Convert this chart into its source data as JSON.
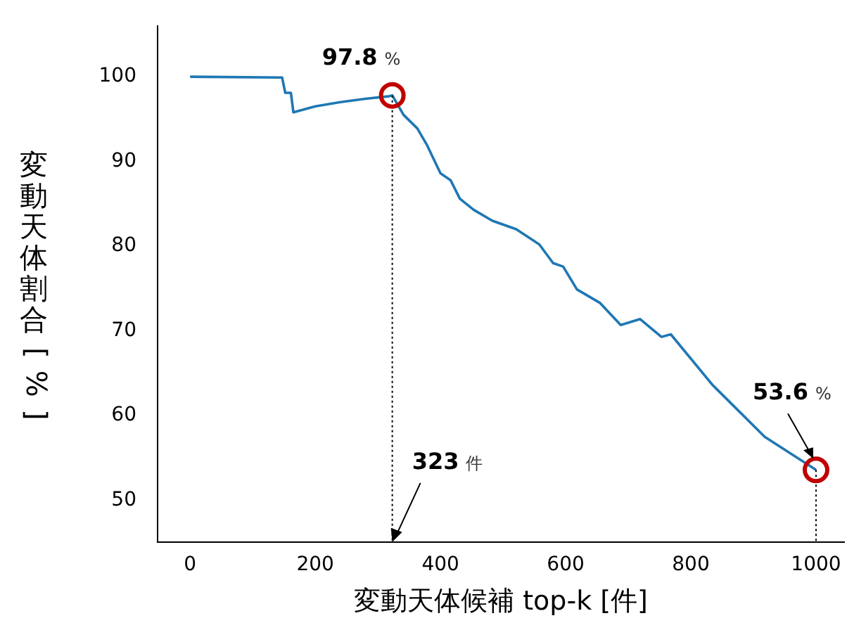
{
  "chart_data": {
    "type": "line",
    "xlabel": "変動天体候補 top-k [件]",
    "ylabel": "変動天体割合 [%]",
    "xlim": [
      -52,
      1045
    ],
    "ylim": [
      45.1,
      106
    ],
    "xticks": [
      0,
      200,
      400,
      600,
      800,
      1000
    ],
    "yticks": [
      50,
      60,
      70,
      80,
      90,
      100
    ],
    "grid": false,
    "legend": false,
    "marker": "none",
    "line_style": "solid",
    "series": [
      {
        "color": "#1f77b4",
        "x": [
          0,
          147,
          152,
          161,
          165,
          200,
          240,
          280,
          318,
          323,
          341,
          363,
          378,
          400,
          416,
          431,
          453,
          483,
          506,
          521,
          558,
          580,
          596,
          618,
          655,
          688,
          719,
          753,
          768,
          835,
          918,
          1000
        ],
        "values": [
          100,
          99.9,
          98.1,
          98.1,
          95.8,
          96.5,
          97.0,
          97.4,
          97.7,
          97.8,
          95.5,
          93.9,
          92.0,
          88.6,
          87.8,
          85.6,
          84.3,
          83.0,
          82.4,
          82.0,
          80.2,
          78.0,
          77.6,
          74.9,
          73.3,
          70.7,
          71.4,
          69.3,
          69.6,
          63.6,
          57.5,
          53.6
        ]
      }
    ],
    "annotations": [
      {
        "text": "97.8 %",
        "x": 323,
        "y": 97.8
      },
      {
        "text": "53.6 %",
        "x": 1000,
        "y": 53.6
      }
    ],
    "ref_lines": [
      {
        "axis": "x",
        "value": 323,
        "label": "323 件",
        "color": "#000000",
        "line_style": "dotted"
      },
      {
        "axis": "x",
        "value": 1000,
        "color": "#000000",
        "line_style": "dotted"
      }
    ]
  }
}
